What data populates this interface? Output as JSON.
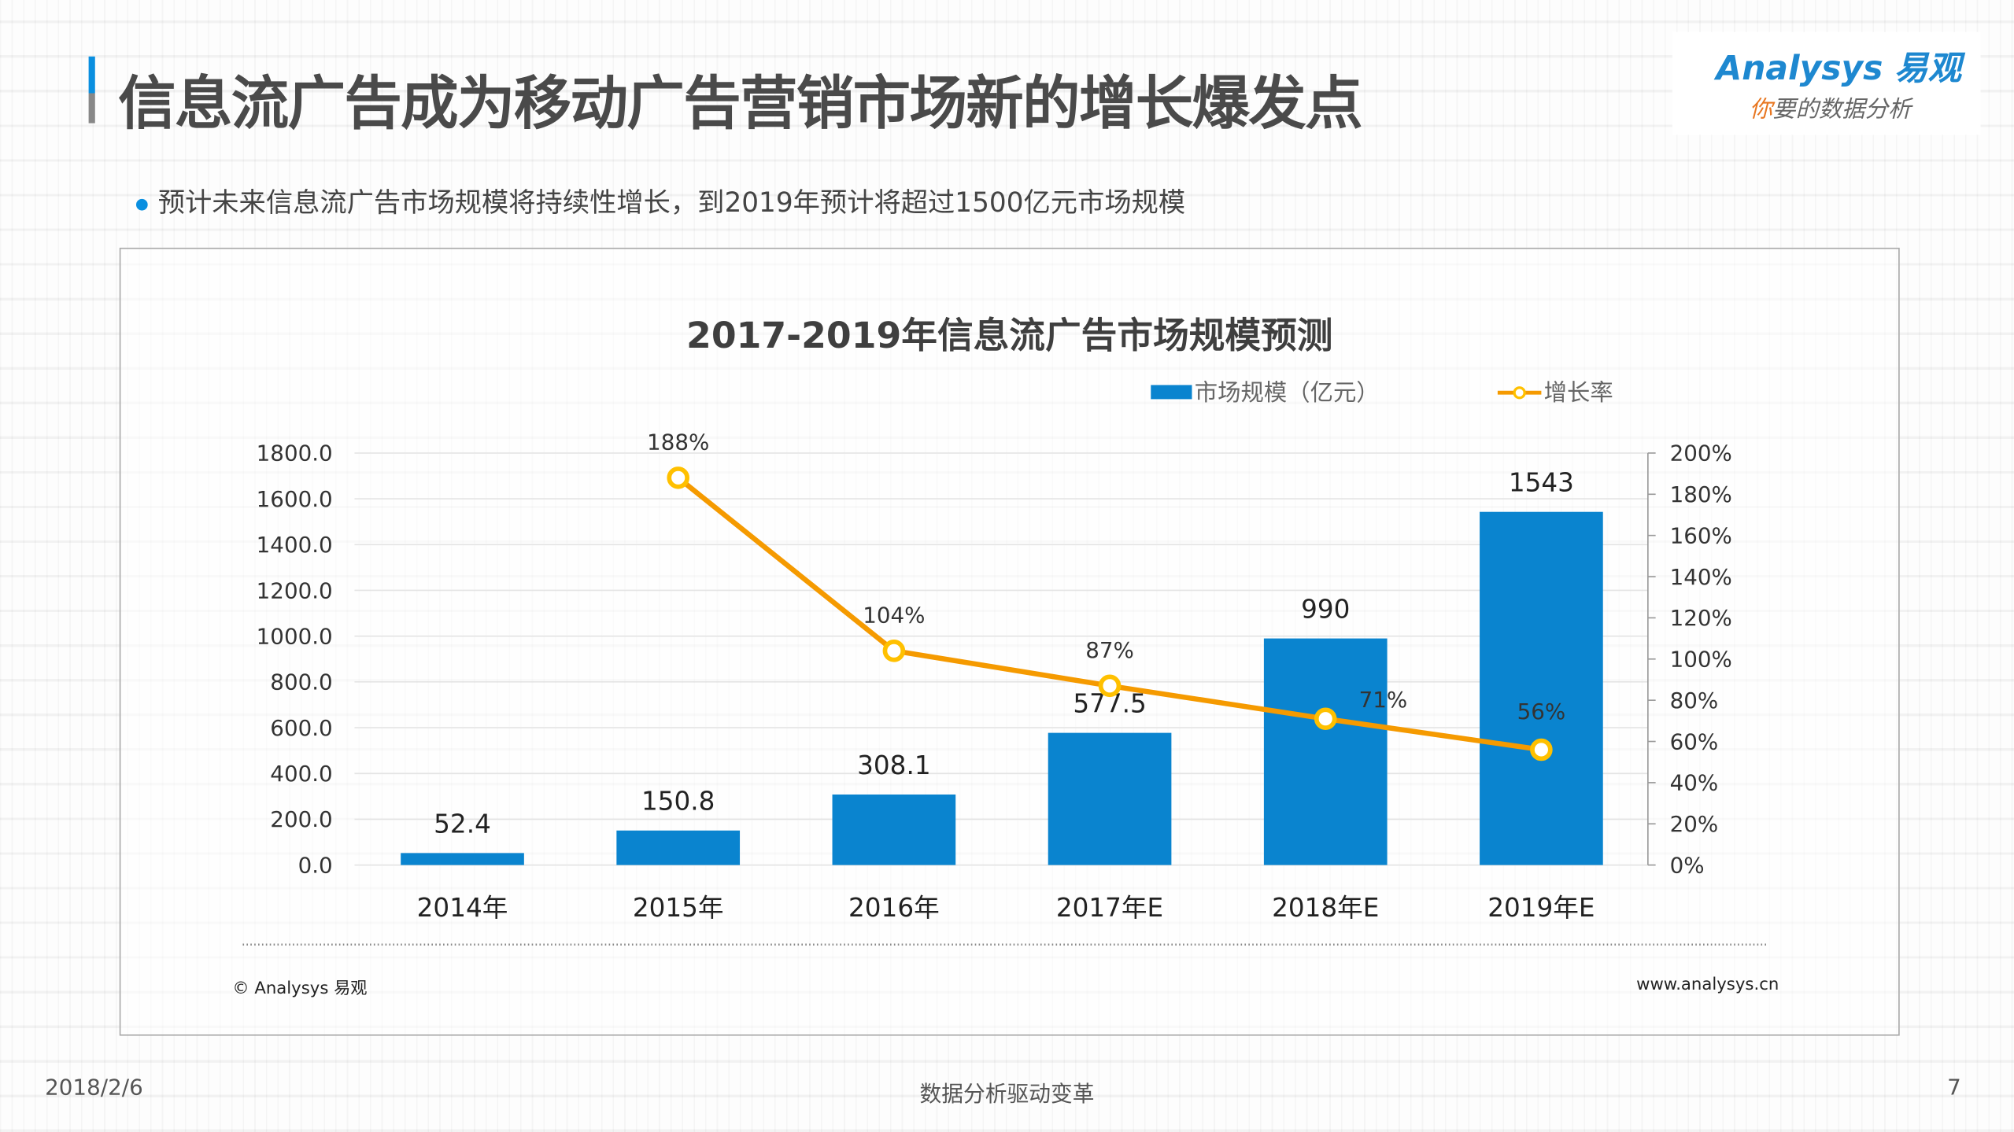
{
  "header": {
    "title": "信息流广告成为移动广告营销市场新的增长爆发点",
    "logo_en": "Analysys 易观",
    "logo_cn_first": "你",
    "logo_cn_rest": "要的数据分析",
    "accent_color": "#0a8fe0"
  },
  "bullet": "预计未来信息流广告市场规模将持续性增长，到2019年预计将超过1500亿元市场规模",
  "chart_data": {
    "type": "bar+line",
    "title": "2017-2019年信息流广告市场规模预测",
    "categories": [
      "2014年",
      "2015年",
      "2016年",
      "2017年E",
      "2018年E",
      "2019年E"
    ],
    "series": [
      {
        "name": "市场规模（亿元）",
        "type": "bar",
        "axis": "left",
        "color": "#0a84cf",
        "values": [
          52.4,
          150.8,
          308.1,
          577.5,
          990,
          1543
        ],
        "labels": [
          "52.4",
          "150.8",
          "308.1",
          "577.5",
          "990",
          "1543"
        ]
      },
      {
        "name": "增长率",
        "type": "line",
        "axis": "right",
        "color": "#f59a00",
        "marker_color": "#ffc000",
        "values": [
          null,
          188,
          104,
          87,
          71,
          56
        ],
        "labels": [
          "",
          "188%",
          "104%",
          "87%",
          "71%",
          "56%"
        ]
      }
    ],
    "y_left": {
      "range": [
        0,
        1800
      ],
      "ticks": [
        "0.0",
        "200.0",
        "400.0",
        "600.0",
        "800.0",
        "1000.0",
        "1200.0",
        "1400.0",
        "1600.0",
        "1800.0"
      ]
    },
    "y_right": {
      "range": [
        0,
        200
      ],
      "ticks": [
        "0%",
        "20%",
        "40%",
        "60%",
        "80%",
        "100%",
        "120%",
        "140%",
        "160%",
        "180%",
        "200%"
      ]
    },
    "legend_position": "top-right",
    "grid": true,
    "source_left": "© Analysys 易观",
    "source_right": "www.analysys.cn"
  },
  "footer": {
    "date": "2018/2/6",
    "center": "数据分析驱动变革",
    "page": "7"
  }
}
